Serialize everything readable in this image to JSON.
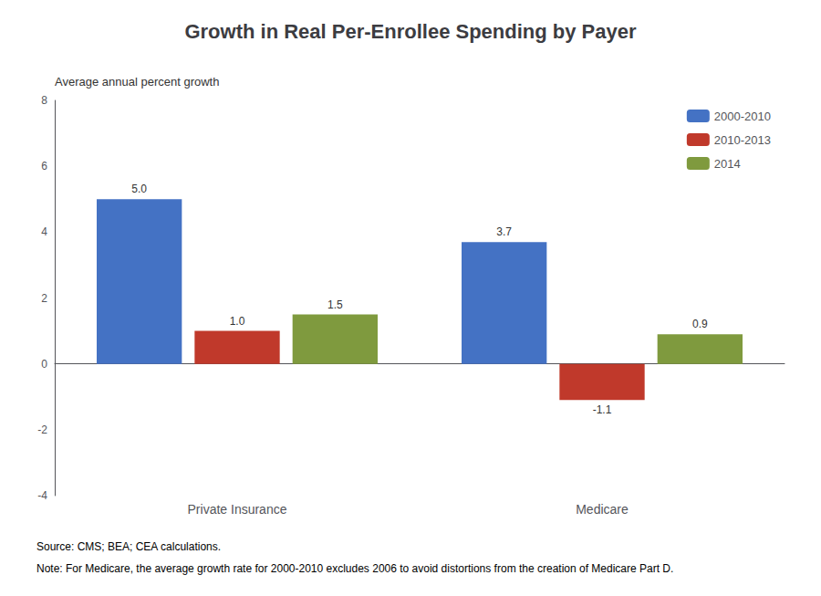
{
  "chart_data": {
    "type": "bar",
    "title": "Growth in Real Per-Enrollee Spending by Payer",
    "ylabel": "Average annual percent growth",
    "categories": [
      "Private Insurance",
      "Medicare"
    ],
    "series": [
      {
        "name": "2000-2010",
        "color": "#4472C4",
        "values": [
          5.0,
          3.7
        ],
        "value_labels": [
          "5.0",
          "3.7"
        ]
      },
      {
        "name": "2010-2013",
        "color": "#C0392B",
        "values": [
          1.0,
          -1.1
        ],
        "value_labels": [
          "1.0",
          "-1.1"
        ]
      },
      {
        "name": "2014",
        "color": "#7F9A3E",
        "values": [
          1.5,
          0.9
        ],
        "value_labels": [
          "1.5",
          "0.9"
        ]
      }
    ],
    "ylim": [
      -4,
      8
    ],
    "yticks": [
      -4,
      -2,
      0,
      2,
      4,
      6,
      8
    ],
    "grid": false,
    "legend": "upper right",
    "data_labels": true,
    "annotations": [
      "Source: CMS; BEA; CEA calculations.",
      "Note: For Medicare, the average growth rate for 2000-2010 excludes 2006 to avoid distortions from the creation of Medicare Part D."
    ]
  }
}
